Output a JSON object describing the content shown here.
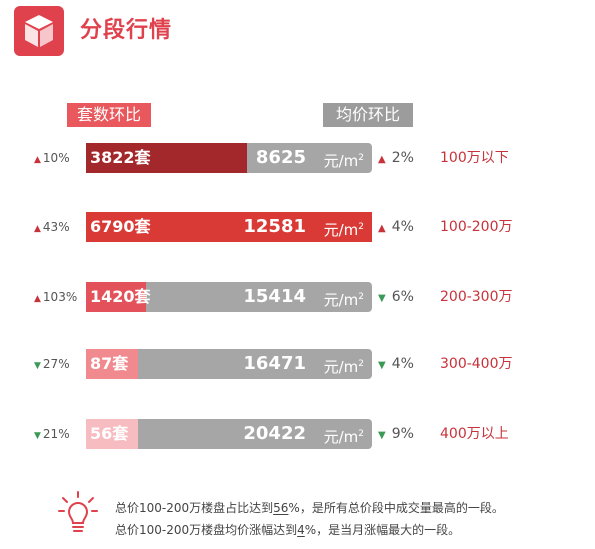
{
  "title": "分段行情",
  "headers": {
    "left": "套数环比",
    "right": "均价环比"
  },
  "colors": {
    "accent": "#e0424d",
    "up": "#c8323a",
    "down": "#3b9a55",
    "bar": "#a7a6a6"
  },
  "chart_data": {
    "type": "bar",
    "categories": [
      "100万以下",
      "100-200万",
      "200-300万",
      "300-400万",
      "400万以上"
    ],
    "series": [
      {
        "name": "套数环比",
        "values": [
          3822,
          6790,
          1420,
          87,
          56
        ]
      },
      {
        "name": "均价环比",
        "values": [
          8625,
          12581,
          15414,
          16471,
          20422
        ]
      }
    ],
    "rows": [
      {
        "range": "100万以下",
        "count_change": "10%",
        "count_dir": "up",
        "count_label": "3822套",
        "count": 3822,
        "price": "8625",
        "unit": "元/m",
        "price_change": "2%",
        "price_dir": "up",
        "fill_color": "#a3282b"
      },
      {
        "range": "100-200万",
        "count_change": "43%",
        "count_dir": "up",
        "count_label": "6790套",
        "count": 6790,
        "price": "12581",
        "unit": "元/m",
        "price_change": "4%",
        "price_dir": "up",
        "fill_color": "#d93a36"
      },
      {
        "range": "200-300万",
        "count_change": "103%",
        "count_dir": "up",
        "count_label": "1420套",
        "count": 1420,
        "price": "15414",
        "unit": "元/m",
        "price_change": "6%",
        "price_dir": "down",
        "fill_color": "#e3525a"
      },
      {
        "range": "300-400万",
        "count_change": "27%",
        "count_dir": "down",
        "count_label": "87套",
        "count": 87,
        "price": "16471",
        "unit": "元/m",
        "price_change": "4%",
        "price_dir": "down",
        "fill_color": "#f08a8e"
      },
      {
        "range": "400万以上",
        "count_change": "21%",
        "count_dir": "down",
        "count_label": "56套",
        "count": 56,
        "price": "20422",
        "unit": "元/m",
        "price_change": "9%",
        "price_dir": "down",
        "fill_color": "#f7bcc0"
      }
    ]
  },
  "notes": [
    {
      "pre": "总价100-200万楼盘占比达到",
      "hl": "56",
      "post": "%，是所有总价段中成交量最高的一段。"
    },
    {
      "pre": "总价100-200万楼盘均价涨幅达到",
      "hl": "4",
      "post": "%，是当月涨幅最大的一段。"
    }
  ]
}
